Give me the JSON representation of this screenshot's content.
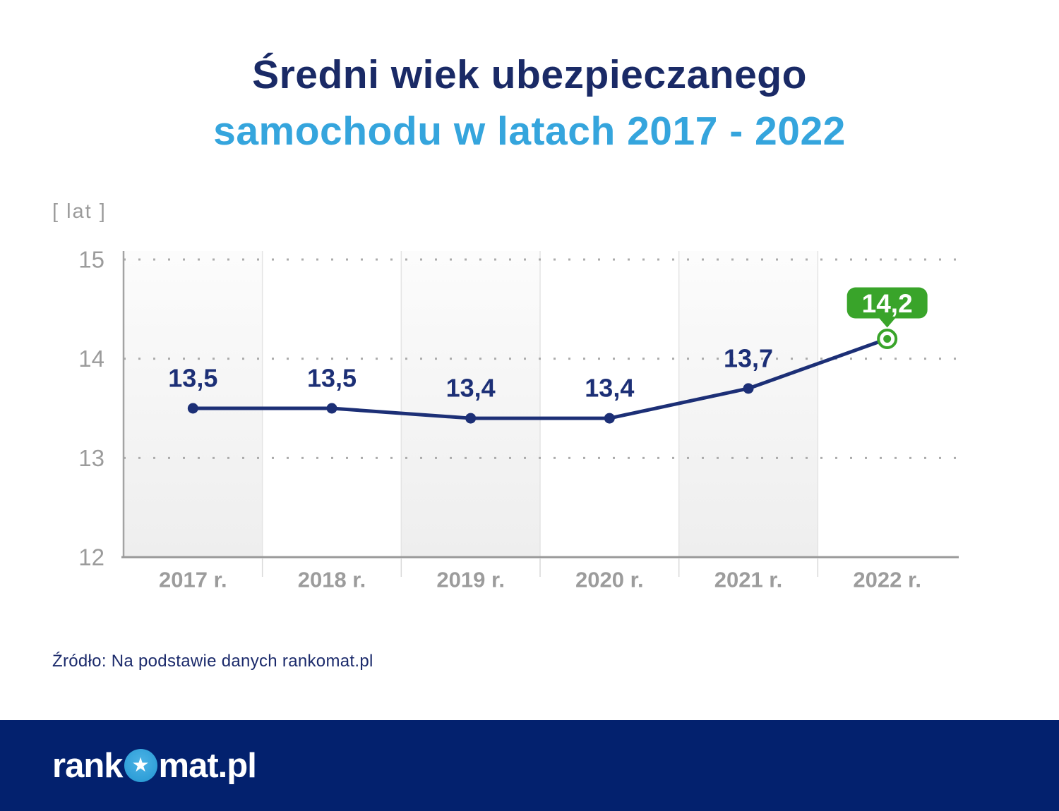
{
  "title": {
    "line1": "Średni wiek ubezpieczanego",
    "line2": "samochodu w latach 2017 - 2022"
  },
  "chart_data": {
    "type": "line",
    "title": "Średni wiek ubezpieczanego samochodu w latach 2017 - 2022",
    "unit_label": "[ lat ]",
    "categories": [
      "2017 r.",
      "2018 r.",
      "2019 r.",
      "2020 r.",
      "2021 r.",
      "2022 r."
    ],
    "values": [
      13.5,
      13.5,
      13.4,
      13.4,
      13.7,
      14.2
    ],
    "value_labels": [
      "13,5",
      "13,5",
      "13,4",
      "13,4",
      "13,7",
      "14,2"
    ],
    "highlight_index": 5,
    "highlight_label": "14,2",
    "yticks": [
      15,
      14,
      13,
      12
    ],
    "ylim": [
      12,
      15.1
    ],
    "xlabel": "",
    "ylabel": "[ lat ]",
    "grid": "dotted-horizontal",
    "legend": "none",
    "shaded_columns": [
      0,
      2,
      4
    ],
    "colors": {
      "line": "#1c2f76",
      "marker": "#1c2f76",
      "data_label": "#1c2f76",
      "highlight_green": "#39a42a",
      "axis_gray": "#9c9c9c",
      "grid_dot": "#ababab",
      "column_shade_top": "#fcfcfc",
      "column_shade_bottom": "#eeeeee",
      "title_navy": "#1a2a66",
      "title_blue": "#35a5dd",
      "footer_navy": "#03216e"
    }
  },
  "source": "Źródło: Na podstawie danych rankomat.pl",
  "footer": {
    "logo_part1": "rank",
    "logo_part2": "mat.pl",
    "star_icon": "★"
  }
}
